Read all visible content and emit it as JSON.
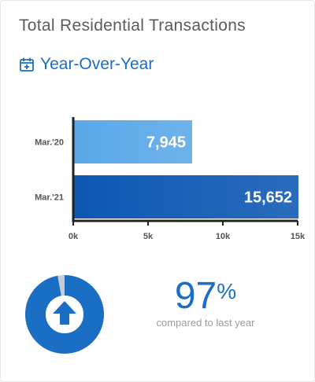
{
  "card": {
    "title": "Total Residential Transactions",
    "subtitle": "Year-Over-Year",
    "calendar_icon": "calendar-plus-icon"
  },
  "chart_data": {
    "type": "bar",
    "orientation": "horizontal",
    "categories": [
      "Mar.'20",
      "Mar.'21"
    ],
    "values": [
      7945,
      15652
    ],
    "value_labels": [
      "7,945",
      "15,652"
    ],
    "xlim": [
      0,
      15000
    ],
    "xticks": [
      "0k",
      "5k",
      "10k",
      "15k"
    ],
    "colors": [
      "#5aa8e8",
      "#0d57b3"
    ],
    "grid": false
  },
  "change": {
    "percent": 97,
    "percent_value": "97",
    "percent_sign": "%",
    "caption": "compared to last year",
    "direction": "up",
    "arrow_icon": "arrow-up-icon",
    "ring_color": "#1a6fc4",
    "remainder_color": "#c9ccd1"
  }
}
